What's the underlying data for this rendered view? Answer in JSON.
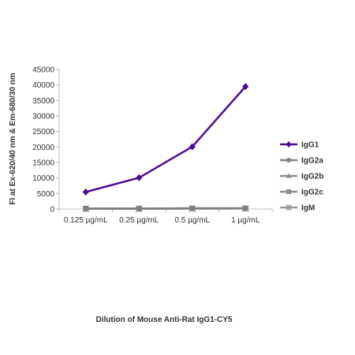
{
  "chart_data": {
    "type": "line",
    "title": "",
    "xlabel": "Dilution of Mouse Anti-Rat IgG1-CY5",
    "ylabel": "FI at Ex-620/40 nm & Em-680/30 nm",
    "categories": [
      "0.125 µg/mL",
      "0.25 µg/mL",
      "0.5 µg/mL",
      "1 µg/mL"
    ],
    "ylim": [
      0,
      45000
    ],
    "yticks": [
      0,
      5000,
      10000,
      15000,
      20000,
      25000,
      30000,
      35000,
      40000,
      45000
    ],
    "grid": false,
    "legend_position": "right",
    "series": [
      {
        "name": "IgG1",
        "values": [
          5500,
          10100,
          20100,
          39500
        ],
        "color": "#4B0C91",
        "marker": "diamond"
      },
      {
        "name": "IgG2a",
        "values": [
          200,
          180,
          220,
          260
        ],
        "color": "#7F7F7F",
        "marker": "circle"
      },
      {
        "name": "IgG2b",
        "values": [
          150,
          140,
          160,
          190
        ],
        "color": "#8C8C8C",
        "marker": "triangle"
      },
      {
        "name": "IgG2c",
        "values": [
          120,
          110,
          250,
          230
        ],
        "color": "#8A8A8A",
        "marker": "square"
      },
      {
        "name": "IgM",
        "values": [
          100,
          100,
          130,
          150
        ],
        "color": "#999999",
        "marker": "star"
      }
    ]
  }
}
